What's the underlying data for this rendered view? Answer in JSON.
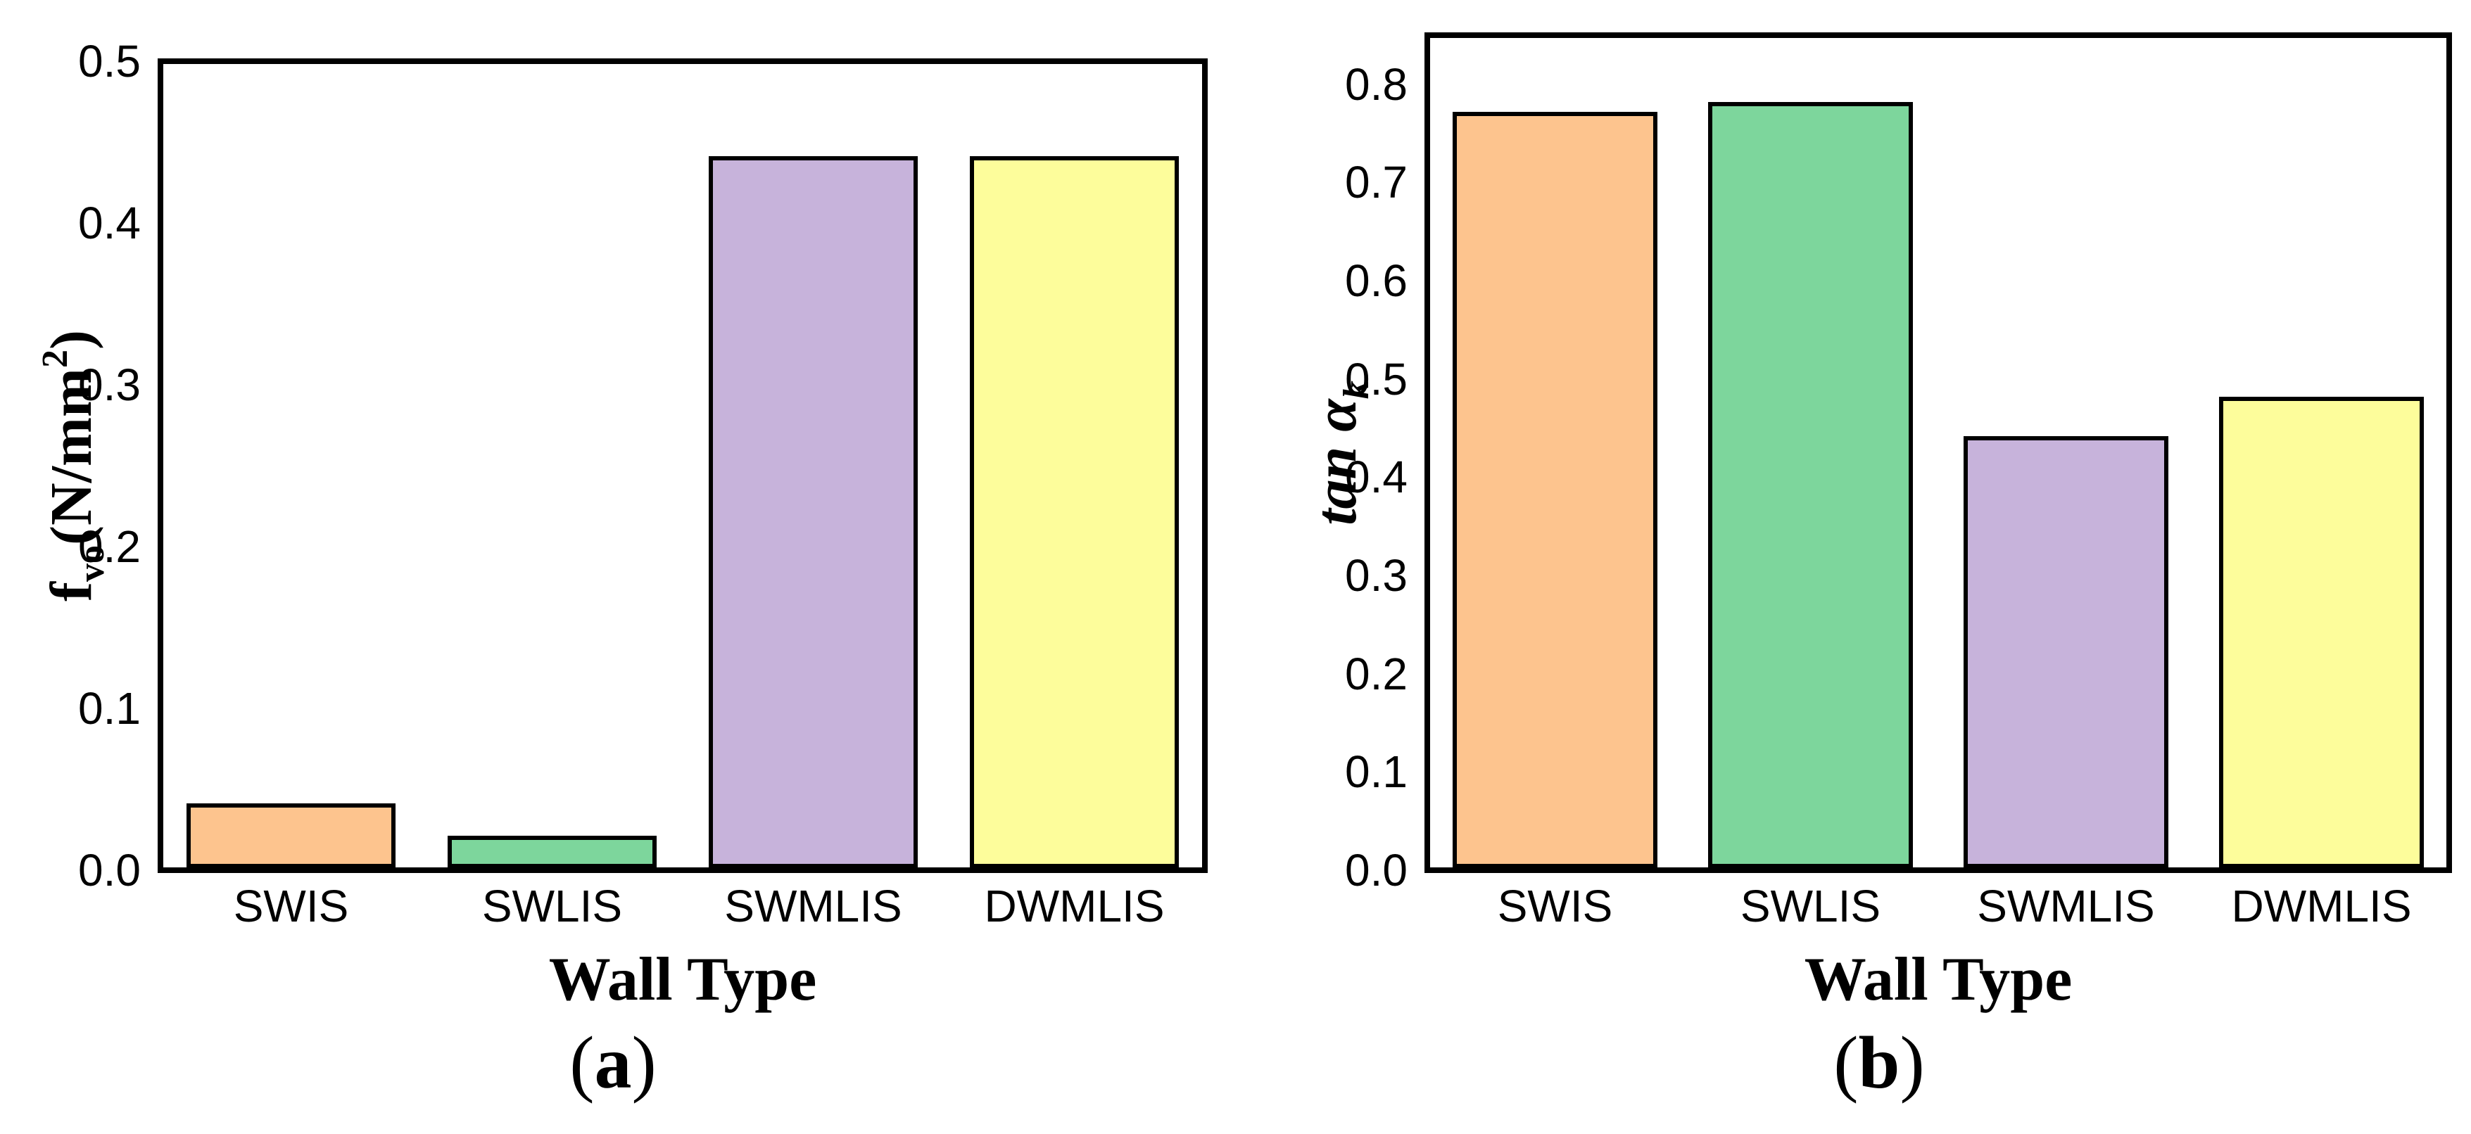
{
  "figure": {
    "background": "#ffffff",
    "foreground": "#000000"
  },
  "chart_data": [
    {
      "type": "bar",
      "panel_label": {
        "open": "(",
        "letter": "a",
        "close": ")"
      },
      "xlabel": "Wall Type",
      "y_title": {
        "main": "f",
        "sub": "vo",
        "unit": "(N/mm",
        "sup": "2",
        "close": ")"
      },
      "categories": [
        "SWIS",
        "SWLIS",
        "SWMLIS",
        "DWMLIS"
      ],
      "values": [
        0.04,
        0.02,
        0.44,
        0.44
      ],
      "bar_colors": [
        "#FDC48E",
        "#7DD69C",
        "#C7B3DB",
        "#FDFD9B"
      ],
      "bar_edge_color": "#000000",
      "ylim": [
        0,
        0.5
      ],
      "yticks": [
        0.0,
        0.1,
        0.2,
        0.3,
        0.4,
        0.5
      ],
      "ytick_labels": [
        "0.0",
        "0.1",
        "0.2",
        "0.3",
        "0.4",
        "0.5"
      ],
      "grid": false,
      "legend": "none"
    },
    {
      "type": "bar",
      "panel_label": {
        "open": "(",
        "letter": "b",
        "close": ")"
      },
      "xlabel": "Wall Type",
      "y_title": {
        "main": "tan α",
        "sub": "k",
        "unit": "",
        "sup": "",
        "close": ""
      },
      "categories": [
        "SWIS",
        "SWLIS",
        "SWMLIS",
        "DWMLIS"
      ],
      "values": [
        0.77,
        0.78,
        0.44,
        0.48
      ],
      "bar_colors": [
        "#FDC48E",
        "#7DD69C",
        "#C7B3DB",
        "#FDFD9B"
      ],
      "bar_edge_color": "#000000",
      "ylim": [
        0,
        0.85
      ],
      "yticks": [
        0.0,
        0.1,
        0.2,
        0.3,
        0.4,
        0.5,
        0.6,
        0.7,
        0.8
      ],
      "ytick_labels": [
        "0.0",
        "0.1",
        "0.2",
        "0.3",
        "0.4",
        "0.5",
        "0.6",
        "0.7",
        "0.8"
      ],
      "grid": false,
      "legend": "none"
    }
  ]
}
